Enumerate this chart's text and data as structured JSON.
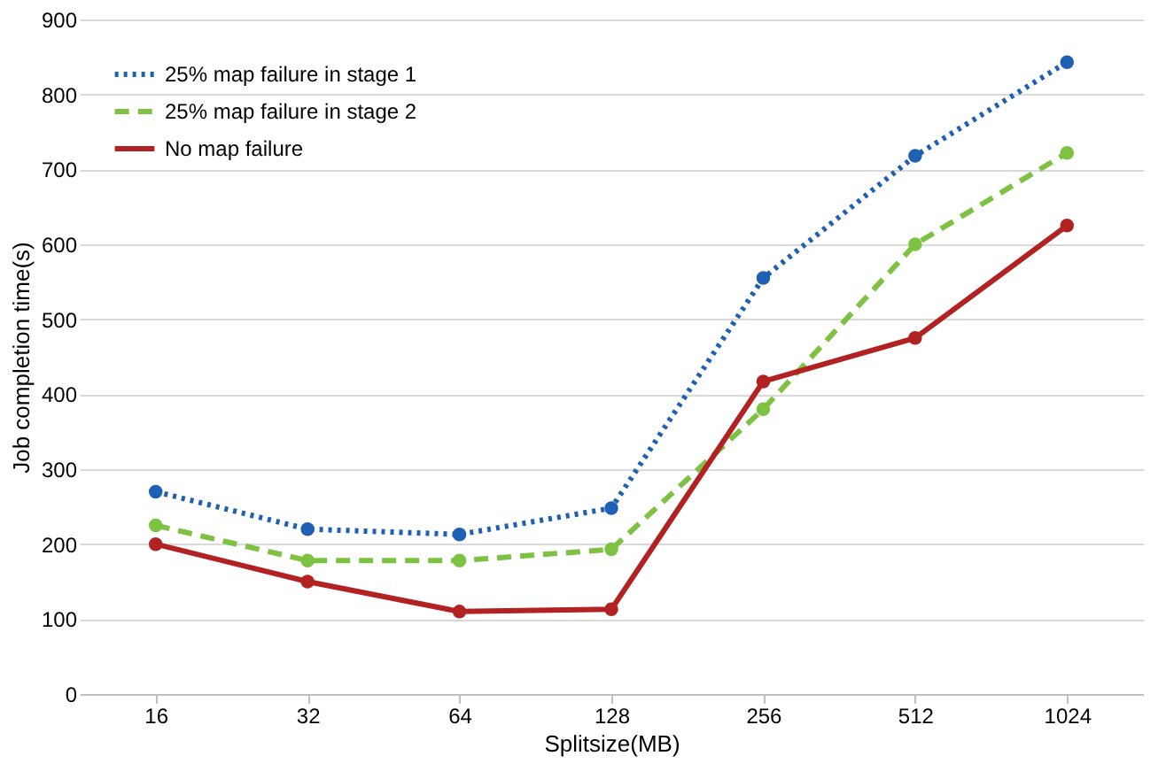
{
  "chart_data": {
    "type": "line",
    "xlabel": "Splitsize(MB)",
    "ylabel": "Job completion time(s)",
    "categories": [
      "16",
      "32",
      "64",
      "128",
      "256",
      "512",
      "1024"
    ],
    "series": [
      {
        "name": "25% map failure in stage 1",
        "color": "#1f5fb4",
        "line_style": "dotted",
        "values": [
          270,
          220,
          213,
          248,
          555,
          718,
          843
        ]
      },
      {
        "name": "25% map failure in stage 2",
        "color": "#7dc242",
        "line_style": "dashed",
        "values": [
          225,
          178,
          178,
          193,
          380,
          600,
          722
        ]
      },
      {
        "name": "No map failure",
        "color": "#b22222",
        "line_style": "solid",
        "values": [
          200,
          150,
          110,
          113,
          417,
          475,
          625
        ]
      }
    ],
    "ylim": [
      0,
      900
    ],
    "yticks": [
      0,
      100,
      200,
      300,
      400,
      500,
      600,
      700,
      800,
      900
    ],
    "grid": "y",
    "legend": "top left",
    "marker": "circle"
  }
}
